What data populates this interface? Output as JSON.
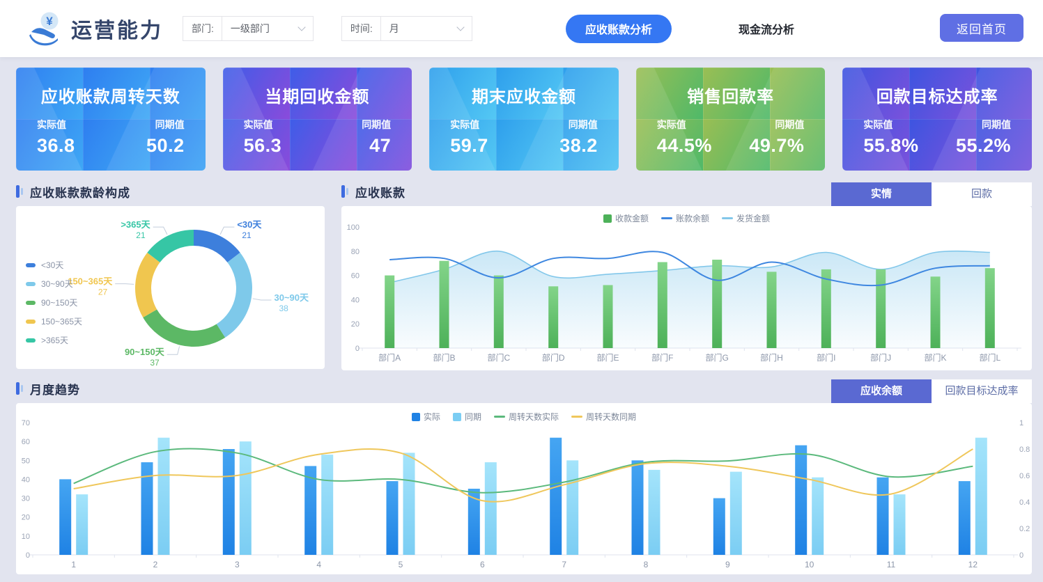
{
  "header": {
    "title": "运营能力",
    "filters": [
      {
        "label": "部门:",
        "value": "一级部门"
      },
      {
        "label": "时间:",
        "value": "月"
      }
    ],
    "nav": [
      {
        "label": "应收账款分析",
        "active": true
      },
      {
        "label": "现金流分析",
        "active": false
      }
    ],
    "home_button": "返回首页",
    "accent_color": "#3577f3"
  },
  "kpi_cards": [
    {
      "title": "应收账款周转天数",
      "actual_label": "实际值",
      "actual_value": "36.8",
      "period_label": "同期值",
      "period_value": "50.2",
      "colors": [
        "#2e7ef0",
        "#3fa8f5"
      ]
    },
    {
      "title": "当期回收金额",
      "actual_label": "实际值",
      "actual_value": "56.3",
      "period_label": "同期值",
      "period_value": "47",
      "colors": [
        "#3e5de8",
        "#8a4bdb"
      ]
    },
    {
      "title": "期末应收金额",
      "actual_label": "实际值",
      "actual_value": "59.7",
      "period_label": "同期值",
      "period_value": "38.2",
      "colors": [
        "#2e9fec",
        "#54c8f4"
      ]
    },
    {
      "title": "销售回款率",
      "actual_label": "实际值",
      "actual_value": "44.5%",
      "period_label": "同期值",
      "period_value": "49.7%",
      "colors": [
        "#9abe54",
        "#4fb969"
      ]
    },
    {
      "title": "回款目标达成率",
      "actual_label": "实际值",
      "actual_value": "55.8%",
      "period_label": "同期值",
      "period_value": "55.2%",
      "colors": [
        "#3d54e0",
        "#7b52dc"
      ]
    }
  ],
  "aging_panel": {
    "title": "应收账款款龄构成",
    "chart_data": {
      "type": "pie",
      "donut": true,
      "legend_position": "left",
      "labels": [
        "<30天",
        "30~90天",
        "90~150天",
        "150~365天",
        ">365天"
      ],
      "values": [
        21,
        38,
        37,
        27,
        21
      ],
      "colors": [
        "#3d7fdc",
        "#7ec9ea",
        "#5cb865",
        "#f0c64f",
        "#36c6a5"
      ]
    }
  },
  "receivable_panel": {
    "title": "应收账款",
    "tabs": [
      {
        "label": "实情",
        "active": true
      },
      {
        "label": "回款",
        "active": false
      }
    ],
    "chart_data": {
      "type": "bar",
      "categories": [
        "部门A",
        "部门B",
        "部门C",
        "部门D",
        "部门E",
        "部门F",
        "部门G",
        "部门H",
        "部门I",
        "部门J",
        "部门K",
        "部门L"
      ],
      "ylim": [
        0,
        100
      ],
      "yticks": [
        0,
        20,
        40,
        60,
        80,
        100
      ],
      "grid": false,
      "legend_position": "top",
      "series": [
        {
          "name": "收款金额",
          "type": "bar",
          "color": "#4db159",
          "color_top": "#83d489",
          "values": [
            60,
            72,
            60,
            51,
            52,
            71,
            73,
            63,
            65,
            65,
            59,
            66
          ]
        },
        {
          "name": "账款余额",
          "type": "line",
          "color": "#3e87e0",
          "values": [
            73,
            74,
            58,
            74,
            74,
            79,
            56,
            71,
            57,
            52,
            66,
            68
          ]
        },
        {
          "name": "发货金额",
          "type": "area",
          "color": "#82c7ea",
          "values": [
            54,
            65,
            80,
            59,
            61,
            64,
            68,
            67,
            79,
            65,
            79,
            79
          ]
        }
      ]
    }
  },
  "monthly_panel": {
    "title": "月度趋势",
    "tabs": [
      {
        "label": "应收余额",
        "active": true
      },
      {
        "label": "回款目标达成率",
        "active": false
      }
    ],
    "chart_data": {
      "type": "bar",
      "categories": [
        "1",
        "2",
        "3",
        "4",
        "5",
        "6",
        "7",
        "8",
        "9",
        "10",
        "11",
        "12"
      ],
      "ylim_left": [
        0,
        70
      ],
      "yticks_left": [
        0,
        10,
        20,
        30,
        40,
        50,
        60,
        70
      ],
      "ylim_right": [
        0,
        1
      ],
      "yticks_right": [
        0,
        0.2,
        0.4,
        0.6,
        0.8,
        1
      ],
      "grid": false,
      "legend_position": "top",
      "series": [
        {
          "name": "实际",
          "type": "bar",
          "color": "#1f82e4",
          "color_top": "#45a5f2",
          "values": [
            40,
            49,
            56,
            47,
            39,
            35,
            62,
            50,
            30,
            58,
            41,
            39
          ]
        },
        {
          "name": "同期",
          "type": "bar",
          "color": "#7bcdf3",
          "color_top": "#a4e4fb",
          "values": [
            32,
            62,
            60,
            53,
            54,
            49,
            50,
            45,
            44,
            41,
            32,
            62
          ]
        },
        {
          "name": "周转天数实际",
          "type": "line",
          "axis": "right",
          "color": "#5bb97c",
          "values": [
            0.54,
            0.78,
            0.77,
            0.57,
            0.57,
            0.47,
            0.55,
            0.7,
            0.71,
            0.76,
            0.59,
            0.67
          ]
        },
        {
          "name": "周转天数同期",
          "type": "line",
          "axis": "right",
          "color": "#efc75b",
          "values": [
            0.5,
            0.6,
            0.6,
            0.76,
            0.77,
            0.41,
            0.53,
            0.69,
            0.67,
            0.57,
            0.46,
            0.8
          ]
        }
      ]
    }
  }
}
